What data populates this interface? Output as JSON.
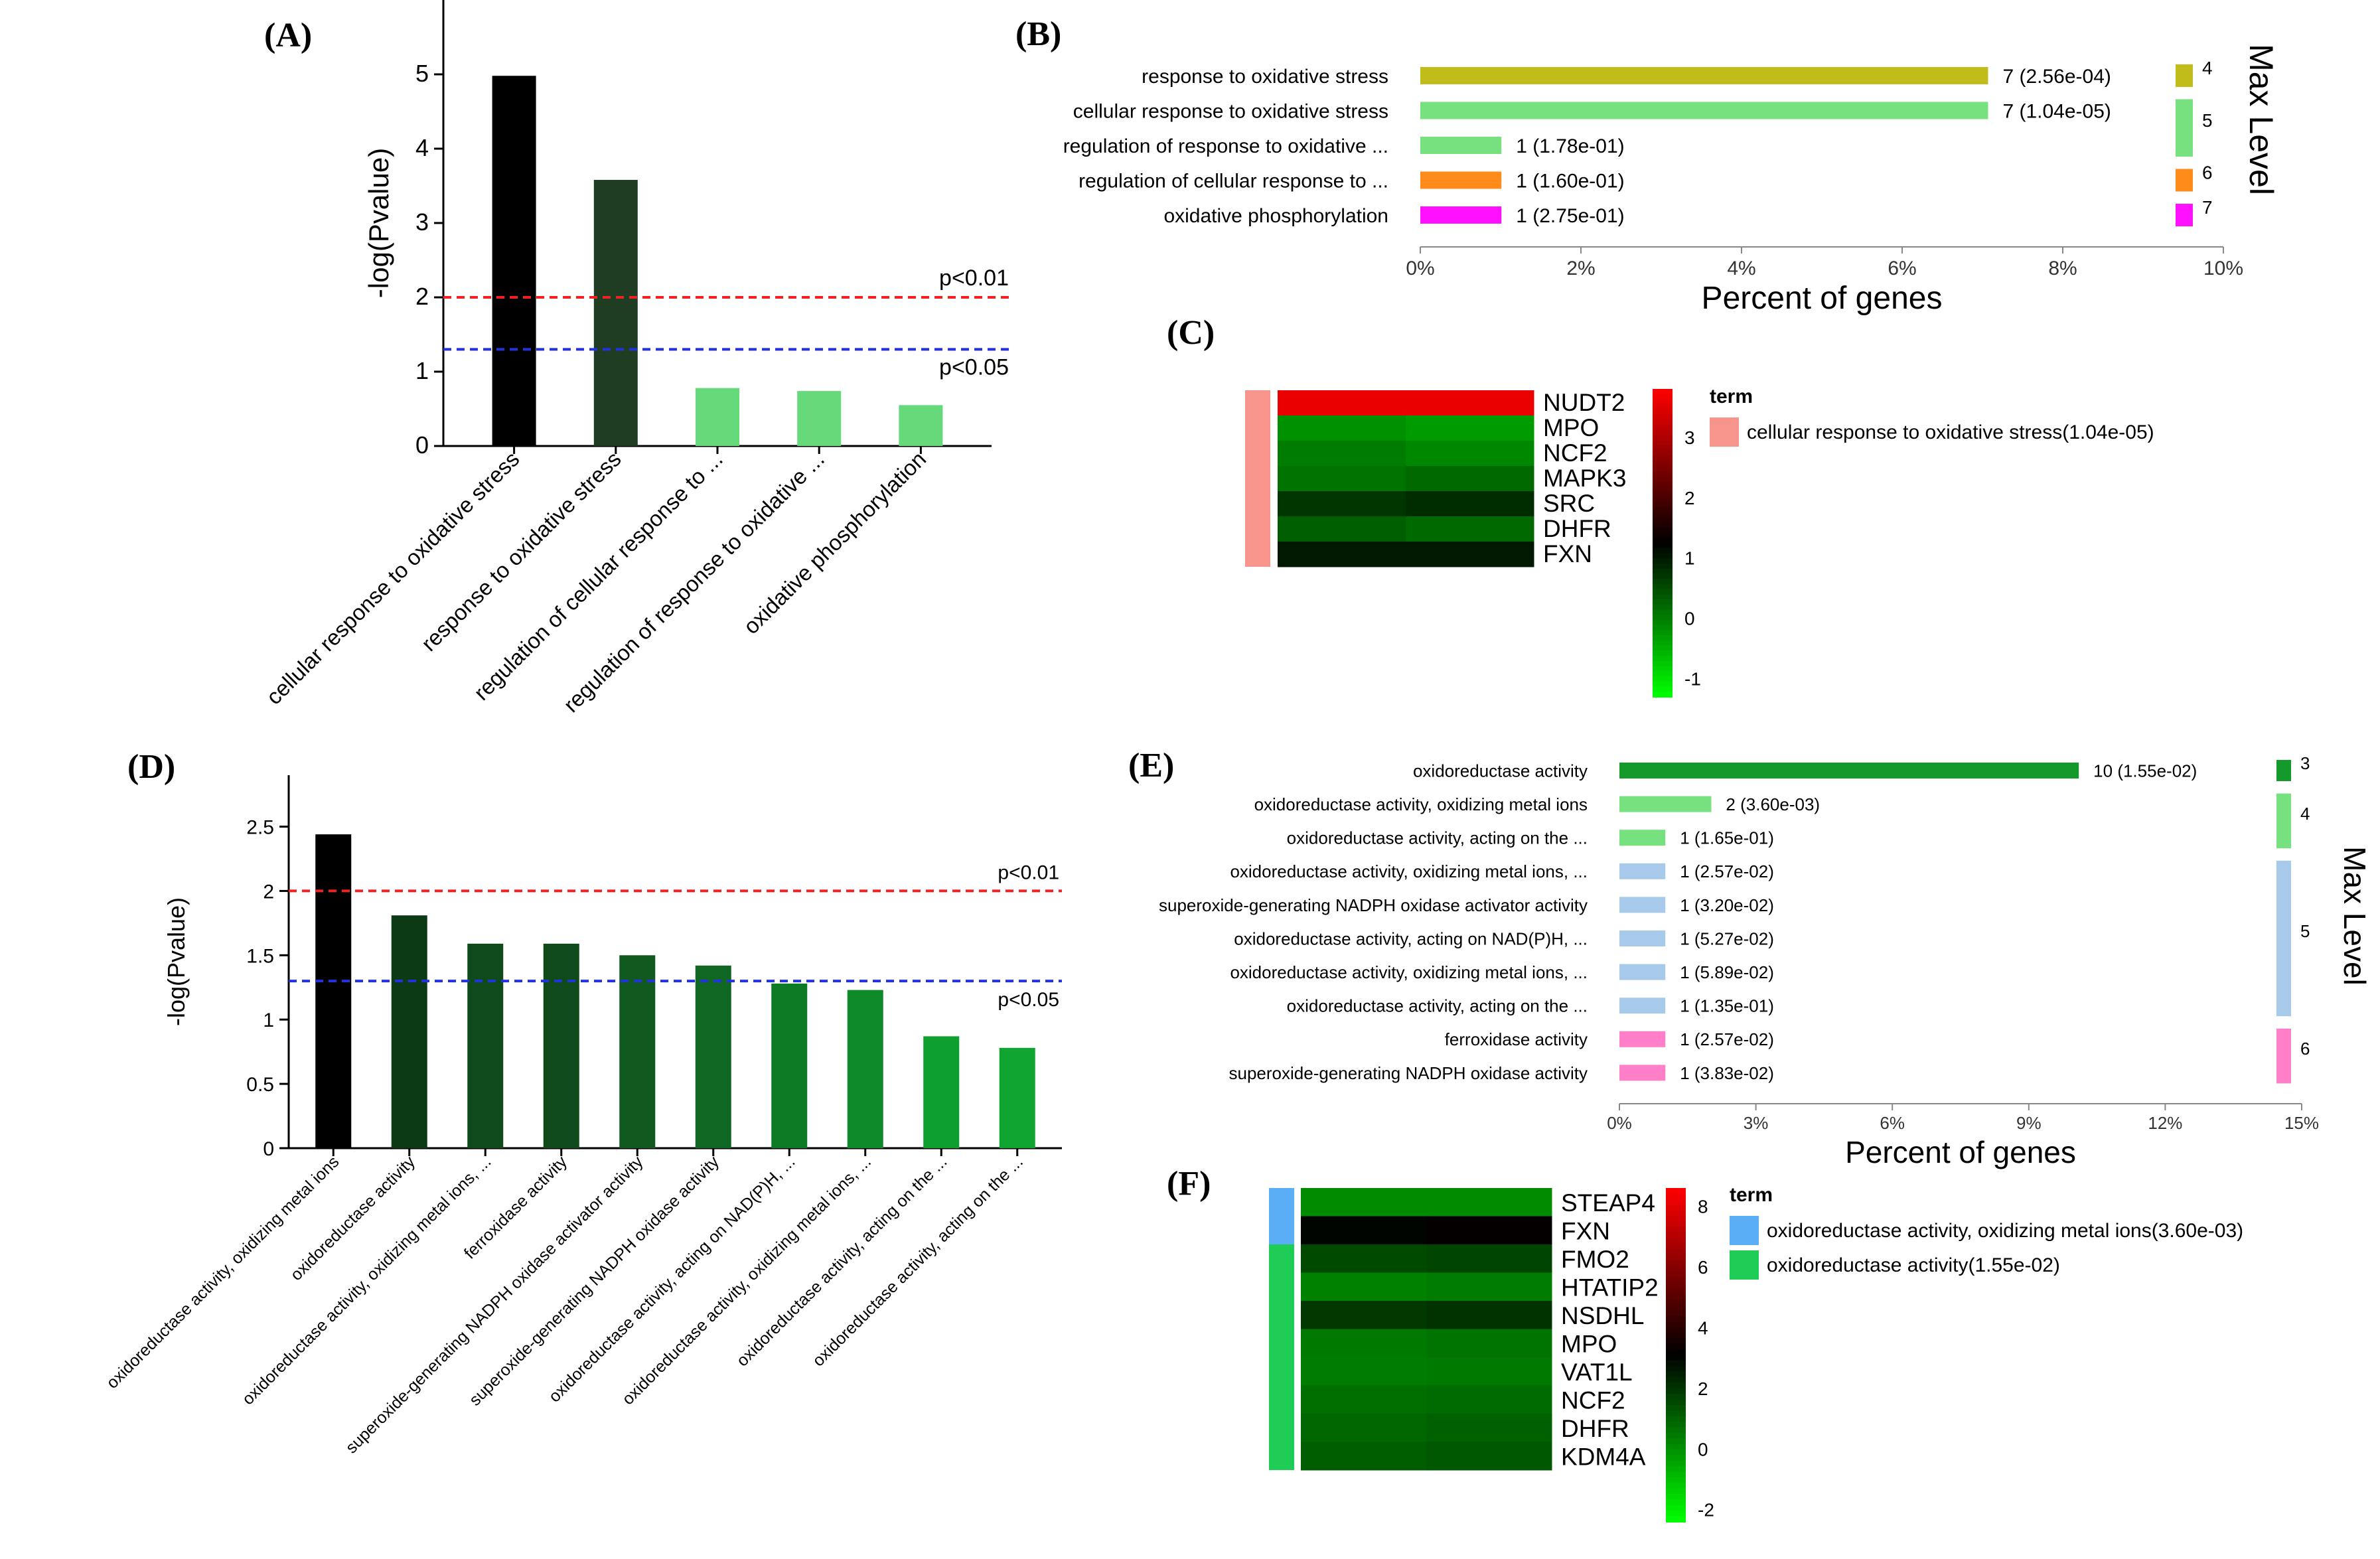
{
  "chart_data": [
    {
      "id": "A",
      "panel_label": "(A)",
      "type": "bar",
      "ylabel": "-log(Pvalue)",
      "ylim": [
        0,
        6
      ],
      "yticks": [
        "0",
        "1",
        "2",
        "3",
        "4",
        "5"
      ],
      "categories": [
        "cellular response to oxidative stress",
        "response to oxidative stress",
        "regulation of cellular response to ...",
        "regulation of response to oxidative ...",
        "oxidative phosphorylation"
      ],
      "values": [
        4.98,
        3.58,
        0.78,
        0.74,
        0.55
      ],
      "bar_colors": [
        "#000000",
        "#1e3d22",
        "#66d97a",
        "#66d97a",
        "#66d97a"
      ],
      "thresholds": [
        {
          "value": 2.0,
          "label": "p<0.01",
          "color": "#ee2222"
        },
        {
          "value": 1.3,
          "label": "p<0.05",
          "color": "#2233dd"
        }
      ]
    },
    {
      "id": "B",
      "panel_label": "(B)",
      "type": "bar",
      "orientation": "horizontal",
      "xlabel": "Percent of genes",
      "xlim": [
        0,
        10
      ],
      "xticks": [
        "0%",
        "2%",
        "4%",
        "6%",
        "8%",
        "10%"
      ],
      "legend_title": "Max Level",
      "categories": [
        "response to oxidative stress",
        "cellular response to oxidative stress",
        "regulation of response to oxidative ...",
        "regulation of cellular response to ...",
        "oxidative phosphorylation"
      ],
      "values": [
        7.07,
        7.07,
        1.01,
        1.01,
        1.01
      ],
      "value_labels": [
        "7 (2.56e-04)",
        "7 (1.04e-05)",
        "1 (1.78e-01)",
        "1 (1.60e-01)",
        "1 (2.75e-01)"
      ],
      "bar_colors": [
        "#c2bc1a",
        "#77e07f",
        "#77e07f",
        "#ff8c1a",
        "#ff10ff"
      ],
      "levels": [
        {
          "label": "4",
          "rows": [
            0,
            0
          ],
          "color": "#c2bc1a"
        },
        {
          "label": "5",
          "rows": [
            1,
            2
          ],
          "color": "#77e07f"
        },
        {
          "label": "6",
          "rows": [
            3,
            3
          ],
          "color": "#ff8c1a"
        },
        {
          "label": "7",
          "rows": [
            4,
            4
          ],
          "color": "#ff10ff"
        }
      ]
    },
    {
      "id": "C",
      "panel_label": "(C)",
      "type": "heatmap",
      "rows": [
        "NUDT2",
        "MPO",
        "NCF2",
        "MAPK3",
        "SRC",
        "DHFR",
        "FXN"
      ],
      "columns": 2,
      "values": [
        [
          3.6,
          3.6
        ],
        [
          -0.2,
          -0.3
        ],
        [
          0.0,
          -0.1
        ],
        [
          0.1,
          0.2
        ],
        [
          0.7,
          0.8
        ],
        [
          0.3,
          0.2
        ],
        [
          1.0,
          1.0
        ]
      ],
      "scale_ticks": [
        "3",
        "2",
        "1",
        "0",
        "-1"
      ],
      "scale_range": [
        -1.3,
        3.8
      ],
      "legend_title": "term",
      "legend_items": [
        {
          "label": "cellular response to oxidative stress(1.04e-05)",
          "color": "#f7958c"
        }
      ],
      "row_annotation": [
        {
          "rows": [
            0,
            6
          ],
          "color": "#f7958c"
        }
      ]
    },
    {
      "id": "D",
      "panel_label": "(D)",
      "type": "bar",
      "ylabel": "-log(Pvalue)",
      "ylim": [
        0,
        2.9
      ],
      "yticks": [
        "0",
        "0.5",
        "1",
        "1.5",
        "2",
        "2.5"
      ],
      "categories": [
        "oxidoreductase activity, oxidizing metal ions",
        "oxidoreductase activity",
        "oxidoreductase activity, oxidizing metal ions, ...",
        "ferroxidase activity",
        "superoxide-generating NADPH oxidase activator activity",
        "superoxide-generating NADPH oxidase activity",
        "oxidoreductase activity, acting on NAD(P)H, ...",
        "oxidoreductase activity, oxidizing metal ions, ...",
        "oxidoreductase activity, acting on the ...",
        "oxidoreductase activity, acting on the ..."
      ],
      "values": [
        2.44,
        1.81,
        1.59,
        1.59,
        1.5,
        1.42,
        1.28,
        1.23,
        0.87,
        0.78
      ],
      "bar_colors": [
        "#000000",
        "#0b3a14",
        "#0f4a1a",
        "#0f4a1a",
        "#105a1f",
        "#106723",
        "#0d7a26",
        "#0f8a2b",
        "#0ea02e",
        "#0fa530"
      ],
      "thresholds": [
        {
          "value": 2.0,
          "label": "p<0.01",
          "color": "#ee2222"
        },
        {
          "value": 1.3,
          "label": "p<0.05",
          "color": "#2233dd"
        }
      ]
    },
    {
      "id": "E",
      "panel_label": "(E)",
      "type": "bar",
      "orientation": "horizontal",
      "xlabel": "Percent of genes",
      "xlim": [
        0,
        15
      ],
      "xticks": [
        "0%",
        "3%",
        "6%",
        "9%",
        "12%",
        "15%"
      ],
      "legend_title": "Max Level",
      "categories": [
        "oxidoreductase activity",
        "oxidoreductase activity, oxidizing metal ions",
        "oxidoreductase activity, acting on the ...",
        "oxidoreductase activity, oxidizing metal ions, ...",
        "superoxide-generating NADPH oxidase activator activity",
        "oxidoreductase activity, acting on NAD(P)H, ...",
        "oxidoreductase activity, oxidizing metal ions, ...",
        "oxidoreductase activity, acting on the ...",
        "ferroxidase activity",
        "superoxide-generating NADPH oxidase activity"
      ],
      "values": [
        10.1,
        2.02,
        1.01,
        1.01,
        1.01,
        1.01,
        1.01,
        1.01,
        1.01,
        1.01
      ],
      "value_labels": [
        "10 (1.55e-02)",
        "2 (3.60e-03)",
        "1 (1.65e-01)",
        "1 (2.57e-02)",
        "1 (3.20e-02)",
        "1 (5.27e-02)",
        "1 (5.89e-02)",
        "1 (1.35e-01)",
        "1 (2.57e-02)",
        "1 (3.83e-02)"
      ],
      "bar_colors": [
        "#149a2a",
        "#77e07f",
        "#77e07f",
        "#a7c9ea",
        "#a7c9ea",
        "#a7c9ea",
        "#a7c9ea",
        "#a7c9ea",
        "#ff80c8",
        "#ff80c8"
      ],
      "levels": [
        {
          "label": "3",
          "rows": [
            0,
            0
          ],
          "color": "#149a2a"
        },
        {
          "label": "4",
          "rows": [
            1,
            2
          ],
          "color": "#77e07f"
        },
        {
          "label": "5",
          "rows": [
            3,
            7
          ],
          "color": "#a7c9ea"
        },
        {
          "label": "6",
          "rows": [
            8,
            9
          ],
          "color": "#ff80c8"
        }
      ]
    },
    {
      "id": "F",
      "panel_label": "(F)",
      "type": "heatmap",
      "rows": [
        "STEAP4",
        "FXN",
        "FMO2",
        "HTATIP2",
        "NSDHL",
        "MPO",
        "VAT1L",
        "NCF2",
        "DHFR",
        "KDM4A"
      ],
      "columns": 2,
      "values": [
        [
          0.1,
          0.1
        ],
        [
          3.0,
          3.2
        ],
        [
          1.5,
          1.6
        ],
        [
          0.3,
          0.4
        ],
        [
          1.9,
          2.0
        ],
        [
          0.5,
          0.6
        ],
        [
          0.4,
          0.5
        ],
        [
          0.7,
          0.8
        ],
        [
          0.9,
          1.0
        ],
        [
          1.1,
          1.2
        ]
      ],
      "scale_ticks": [
        "8",
        "6",
        "4",
        "2",
        "0",
        "-2"
      ],
      "scale_range": [
        -2.4,
        8.6
      ],
      "legend_title": "term",
      "legend_items": [
        {
          "label": "oxidoreductase activity, oxidizing metal ions(3.60e-03)",
          "color": "#5aaef5"
        },
        {
          "label": "oxidoreductase activity(1.55e-02)",
          "color": "#1fcc55"
        }
      ],
      "row_annotation": [
        {
          "rows": [
            0,
            1
          ],
          "color": "#5aaef5"
        },
        {
          "rows": [
            2,
            9
          ],
          "color": "#1fcc55"
        }
      ]
    }
  ]
}
